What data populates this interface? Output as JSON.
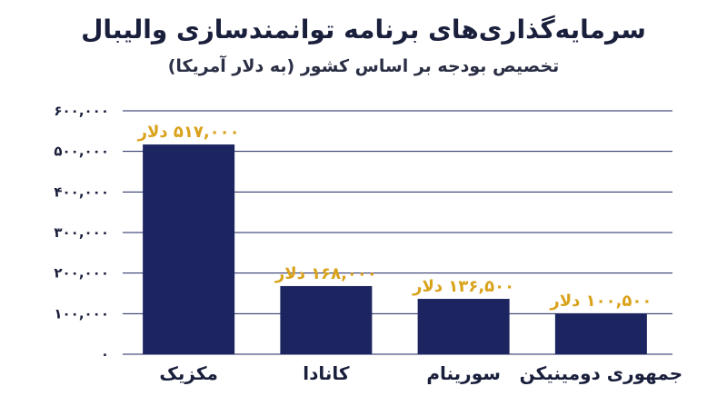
{
  "chart_data": {
    "type": "bar",
    "title": "سرمایه‌گذاری‌های برنامه توانمندسازی والیبال",
    "subtitle": "تخصیص بودجه بر اساس کشور (به دلار آمریکا)",
    "categories": [
      "مکزیک",
      "کانادا",
      "سورینام",
      "جمهوری دومینیکن"
    ],
    "values": [
      517000,
      168000,
      136500,
      100500
    ],
    "data_labels": [
      "۵۱۷,۰۰۰ دلار",
      "۱۶۸,۰۰۰ دلار",
      "۱۳۶,۵۰۰ دلار",
      "۱۰۰,۵۰۰ دلار"
    ],
    "ylim": [
      0,
      600000
    ],
    "yticks": [
      0,
      100000,
      200000,
      300000,
      400000,
      500000,
      600000
    ],
    "ytick_labels": [
      "۰",
      "۱۰۰,۰۰۰",
      "۲۰۰,۰۰۰",
      "۳۰۰,۰۰۰",
      "۴۰۰,۰۰۰",
      "۵۰۰,۰۰۰",
      "۶۰۰,۰۰۰"
    ],
    "xlabel": "",
    "ylabel": "",
    "grid": true,
    "legend": "none",
    "colors": {
      "bar": "#1d2560",
      "data_label": "#d9a21b",
      "grid": "#1d2560",
      "text": "#1a1f3c"
    }
  }
}
